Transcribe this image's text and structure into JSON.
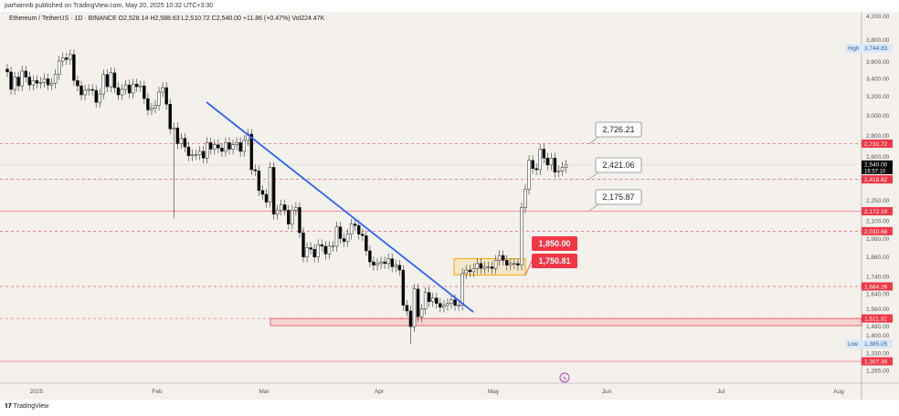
{
  "header": {
    "published": "parhamnb published on TradingView.com, May 20, 2025 10:32 UTC+3:30",
    "symbol_line": "Ethereum / TetherUS · 1D · BINANCE  O2,528.14  H2,588.63  L2,510.72  C2,540.00  +11.86 (+0.47%)  Vol224.47K"
  },
  "price_axis": [
    "4,200.00",
    "3,800.00",
    "3,600.00",
    "3,400.00",
    "3,200.00",
    "3,000.00",
    "2,800.00",
    "2,600.00",
    "2,250.00",
    "2,100.00",
    "1,980.00",
    "1,860.00",
    "1,740.00",
    "1,640.00",
    "1,560.00",
    "1,480.00",
    "1,400.00",
    "1,330.00",
    "1,265.00"
  ],
  "price_axis_values": [
    4200,
    3800,
    3600,
    3400,
    3200,
    3000,
    2800,
    2600,
    2250,
    2100,
    1980,
    1860,
    1740,
    1640,
    1560,
    1480,
    1400,
    1330,
    1265
  ],
  "time_axis": [
    "2025",
    "Feb",
    "Mar",
    "Apr",
    "May",
    "Jun",
    "Jul",
    "Aug"
  ],
  "high": {
    "label": "High",
    "value": "3,744.83"
  },
  "low": {
    "label": "Low",
    "value": "1,385.05"
  },
  "current": {
    "price": "2,540.00",
    "countdown": "16:57:10"
  },
  "levels": [
    {
      "label": "2,730.72",
      "price": 2730.72,
      "style": "dashed"
    },
    {
      "label": "2,419.62",
      "price": 2419.62,
      "style": "dashed"
    },
    {
      "label": "2,172.19",
      "price": 2172.19,
      "style": "solid"
    },
    {
      "label": "2,030.68",
      "price": 2030.68,
      "style": "dashed"
    },
    {
      "label": "1,684.26",
      "price": 1684.26,
      "style": "dashed"
    },
    {
      "label": "1,511.32",
      "price": 1511.32,
      "style": "dashed"
    },
    {
      "label": "1,307.39",
      "price": 1307.39,
      "style": "solid"
    }
  ],
  "callouts": [
    "2,726.21",
    "2,421.06",
    "2,175.87"
  ],
  "range_labels": [
    "1,850.00",
    "1,750.81"
  ],
  "colors": {
    "up": "#ffffff",
    "down": "#000000",
    "level": "#f23645",
    "trend": "#2962ff",
    "box": "#f7a600"
  },
  "footer": {
    "brand": "TradingView"
  },
  "chart_data": {
    "type": "candlestick",
    "start": "2024-12-20",
    "interval": "1D",
    "scale": "log",
    "closes": [
      3480,
      3280,
      3420,
      3320,
      3490,
      3420,
      3330,
      3380,
      3350,
      3360,
      3400,
      3330,
      3350,
      3450,
      3610,
      3650,
      3630,
      3690,
      3380,
      3320,
      3220,
      3270,
      3280,
      3270,
      3140,
      3230,
      3450,
      3310,
      3470,
      3300,
      3220,
      3280,
      3330,
      3240,
      3340,
      3310,
      3320,
      3180,
      3060,
      3080,
      3110,
      3250,
      3300,
      3120,
      2870,
      2880,
      2730,
      2780,
      2700,
      2620,
      2630,
      2630,
      2660,
      2600,
      2740,
      2680,
      2720,
      2690,
      2660,
      2740,
      2680,
      2720,
      2740,
      2660,
      2760,
      2820,
      2500,
      2490,
      2330,
      2300,
      2240,
      2520,
      2150,
      2180,
      2220,
      2180,
      2080,
      2180,
      2200,
      2020,
      1860,
      1920,
      1910,
      1860,
      1940,
      1930,
      1880,
      1930,
      1930,
      2060,
      1980,
      1960,
      2010,
      2080,
      2070,
      2010,
      2000,
      1900,
      1830,
      1810,
      1820,
      1830,
      1820,
      1850,
      1800,
      1810,
      1780,
      1580,
      1550,
      1470,
      1670,
      1520,
      1560,
      1650,
      1600,
      1620,
      1590,
      1570,
      1580,
      1590,
      1610,
      1580,
      1580,
      1760,
      1780,
      1770,
      1790,
      1820,
      1790,
      1800,
      1800,
      1790,
      1840,
      1870,
      1840,
      1810,
      1820,
      1820,
      1810,
      2200,
      2340,
      2580,
      2510,
      2500,
      2680,
      2600,
      2540,
      2600,
      2480,
      2490,
      2520,
      2540
    ],
    "wick_lows": {
      "45": 2120,
      "109": 1385
    }
  }
}
